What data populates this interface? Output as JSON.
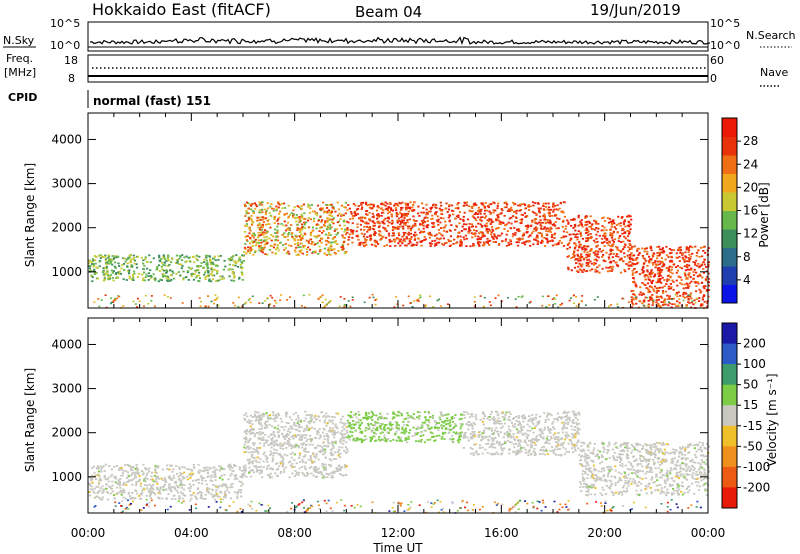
{
  "header": {
    "title": "Hokkaido East (fitACF)",
    "beam": "Beam 04",
    "date": "19/Jun/2019"
  },
  "panels": {
    "nsky": {
      "label": "N.Sky",
      "tick_top": "10^5",
      "tick_bottom": "10^0",
      "right_label": "N.Search",
      "right_tick_top": "10^5",
      "right_tick_bottom": "10^0"
    },
    "freq": {
      "label_line1": "Freq.",
      "label_line2": "[MHz]",
      "tick_top": "18",
      "tick_bottom": "8",
      "right_label": "Nave",
      "right_tick_top": "60",
      "right_tick_bottom": "0"
    },
    "cpid": {
      "label": "CPID",
      "value": "normal (fast) 151"
    }
  },
  "chart_data": [
    {
      "type": "heatmap",
      "name": "power",
      "ylabel": "Slant Range [km]",
      "y_ticks": [
        "1000",
        "2000",
        "3000",
        "4000"
      ],
      "ylim": [
        180,
        4600
      ],
      "x_ticks": [
        "00:00",
        "04:00",
        "08:00",
        "12:00",
        "16:00",
        "20:00",
        "00:00"
      ],
      "colorbar_label": "Power [dB]",
      "colorbar_ticks": [
        "4",
        "8",
        "12",
        "16",
        "20",
        "24",
        "28"
      ],
      "colorscale": [
        "#0a14e6",
        "#1f3fb0",
        "#2c6e8a",
        "#3c8f5a",
        "#66b84a",
        "#c8c832",
        "#f2a81e",
        "#f06e14",
        "#e8320a",
        "#ee1a08"
      ],
      "approx_features": [
        {
          "hours": [
            0,
            6
          ],
          "range_km": [
            800,
            1400
          ],
          "level": "12-20 dB"
        },
        {
          "hours": [
            6,
            10
          ],
          "range_km": [
            1400,
            2600
          ],
          "level": "16-28 dB"
        },
        {
          "hours": [
            10,
            18.5
          ],
          "range_km": [
            1600,
            2600
          ],
          "level": "24-28 dB"
        },
        {
          "hours": [
            18.5,
            21
          ],
          "range_km": [
            1000,
            2300
          ],
          "level": "20-28 dB"
        },
        {
          "hours": [
            21,
            24
          ],
          "range_km": [
            200,
            1600
          ],
          "level": "20-28 dB"
        }
      ]
    },
    {
      "type": "heatmap",
      "name": "velocity",
      "ylabel": "Slant Range [km]",
      "y_ticks": [
        "1000",
        "2000",
        "3000",
        "4000"
      ],
      "ylim": [
        180,
        4600
      ],
      "x_ticks": [
        "00:00",
        "04:00",
        "08:00",
        "12:00",
        "16:00",
        "20:00",
        "00:00"
      ],
      "xlabel": "Time UT",
      "colorbar_label": "Velocity [m s⁻¹]",
      "colorbar_ticks": [
        "200",
        "100",
        "50",
        "15",
        "-15",
        "-50",
        "-100",
        "-200"
      ],
      "colorscale": [
        "#1a1aa6",
        "#2c5bc8",
        "#3c9c6c",
        "#7ccc46",
        "#c8c8c0",
        "#f0c02a",
        "#f0901c",
        "#ec5a14",
        "#e81a0a"
      ],
      "approx_features": [
        {
          "hours": [
            0,
            6
          ],
          "range_km": [
            500,
            1300
          ],
          "value": "ground scatter (-15 to 15)"
        },
        {
          "hours": [
            6,
            10
          ],
          "range_km": [
            1000,
            2500
          ],
          "value": "ground scatter (-15 to 15)"
        },
        {
          "hours": [
            10,
            14.5
          ],
          "range_km": [
            1800,
            2500
          ],
          "value": "15 to 50"
        },
        {
          "hours": [
            14.5,
            19
          ],
          "range_km": [
            1500,
            2500
          ],
          "value": "ground scatter (-15 to 15)"
        },
        {
          "hours": [
            19,
            24
          ],
          "range_km": [
            600,
            1800
          ],
          "value": "ground scatter (-15 to 15)"
        }
      ]
    }
  ]
}
